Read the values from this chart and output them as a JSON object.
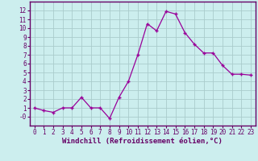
{
  "x": [
    0,
    1,
    2,
    3,
    4,
    5,
    6,
    7,
    8,
    9,
    10,
    11,
    12,
    13,
    14,
    15,
    16,
    17,
    18,
    19,
    20,
    21,
    22,
    23
  ],
  "y": [
    1.0,
    0.7,
    0.5,
    1.0,
    1.0,
    2.2,
    1.0,
    1.0,
    -0.2,
    2.2,
    4.0,
    7.0,
    10.5,
    9.7,
    11.9,
    11.6,
    9.5,
    8.2,
    7.2,
    7.2,
    5.8,
    4.8,
    4.8,
    4.7
  ],
  "line_color": "#990099",
  "marker": "+",
  "bg_color": "#cceeee",
  "grid_color": "#aacccc",
  "xlabel": "Windchill (Refroidissement éolien,°C)",
  "xlim": [
    -0.5,
    23.5
  ],
  "ylim": [
    -1,
    13
  ],
  "yticks": [
    0,
    1,
    2,
    3,
    4,
    5,
    6,
    7,
    8,
    9,
    10,
    11,
    12
  ],
  "ytick_labels": [
    "-0",
    "1",
    "2",
    "3",
    "4",
    "5",
    "6",
    "7",
    "8",
    "9",
    "10",
    "11",
    "12"
  ],
  "xticks": [
    0,
    1,
    2,
    3,
    4,
    5,
    6,
    7,
    8,
    9,
    10,
    11,
    12,
    13,
    14,
    15,
    16,
    17,
    18,
    19,
    20,
    21,
    22,
    23
  ],
  "tick_label_fontsize": 5.5,
  "xlabel_fontsize": 6.5,
  "axis_color": "#660066",
  "spine_color": "#660066"
}
